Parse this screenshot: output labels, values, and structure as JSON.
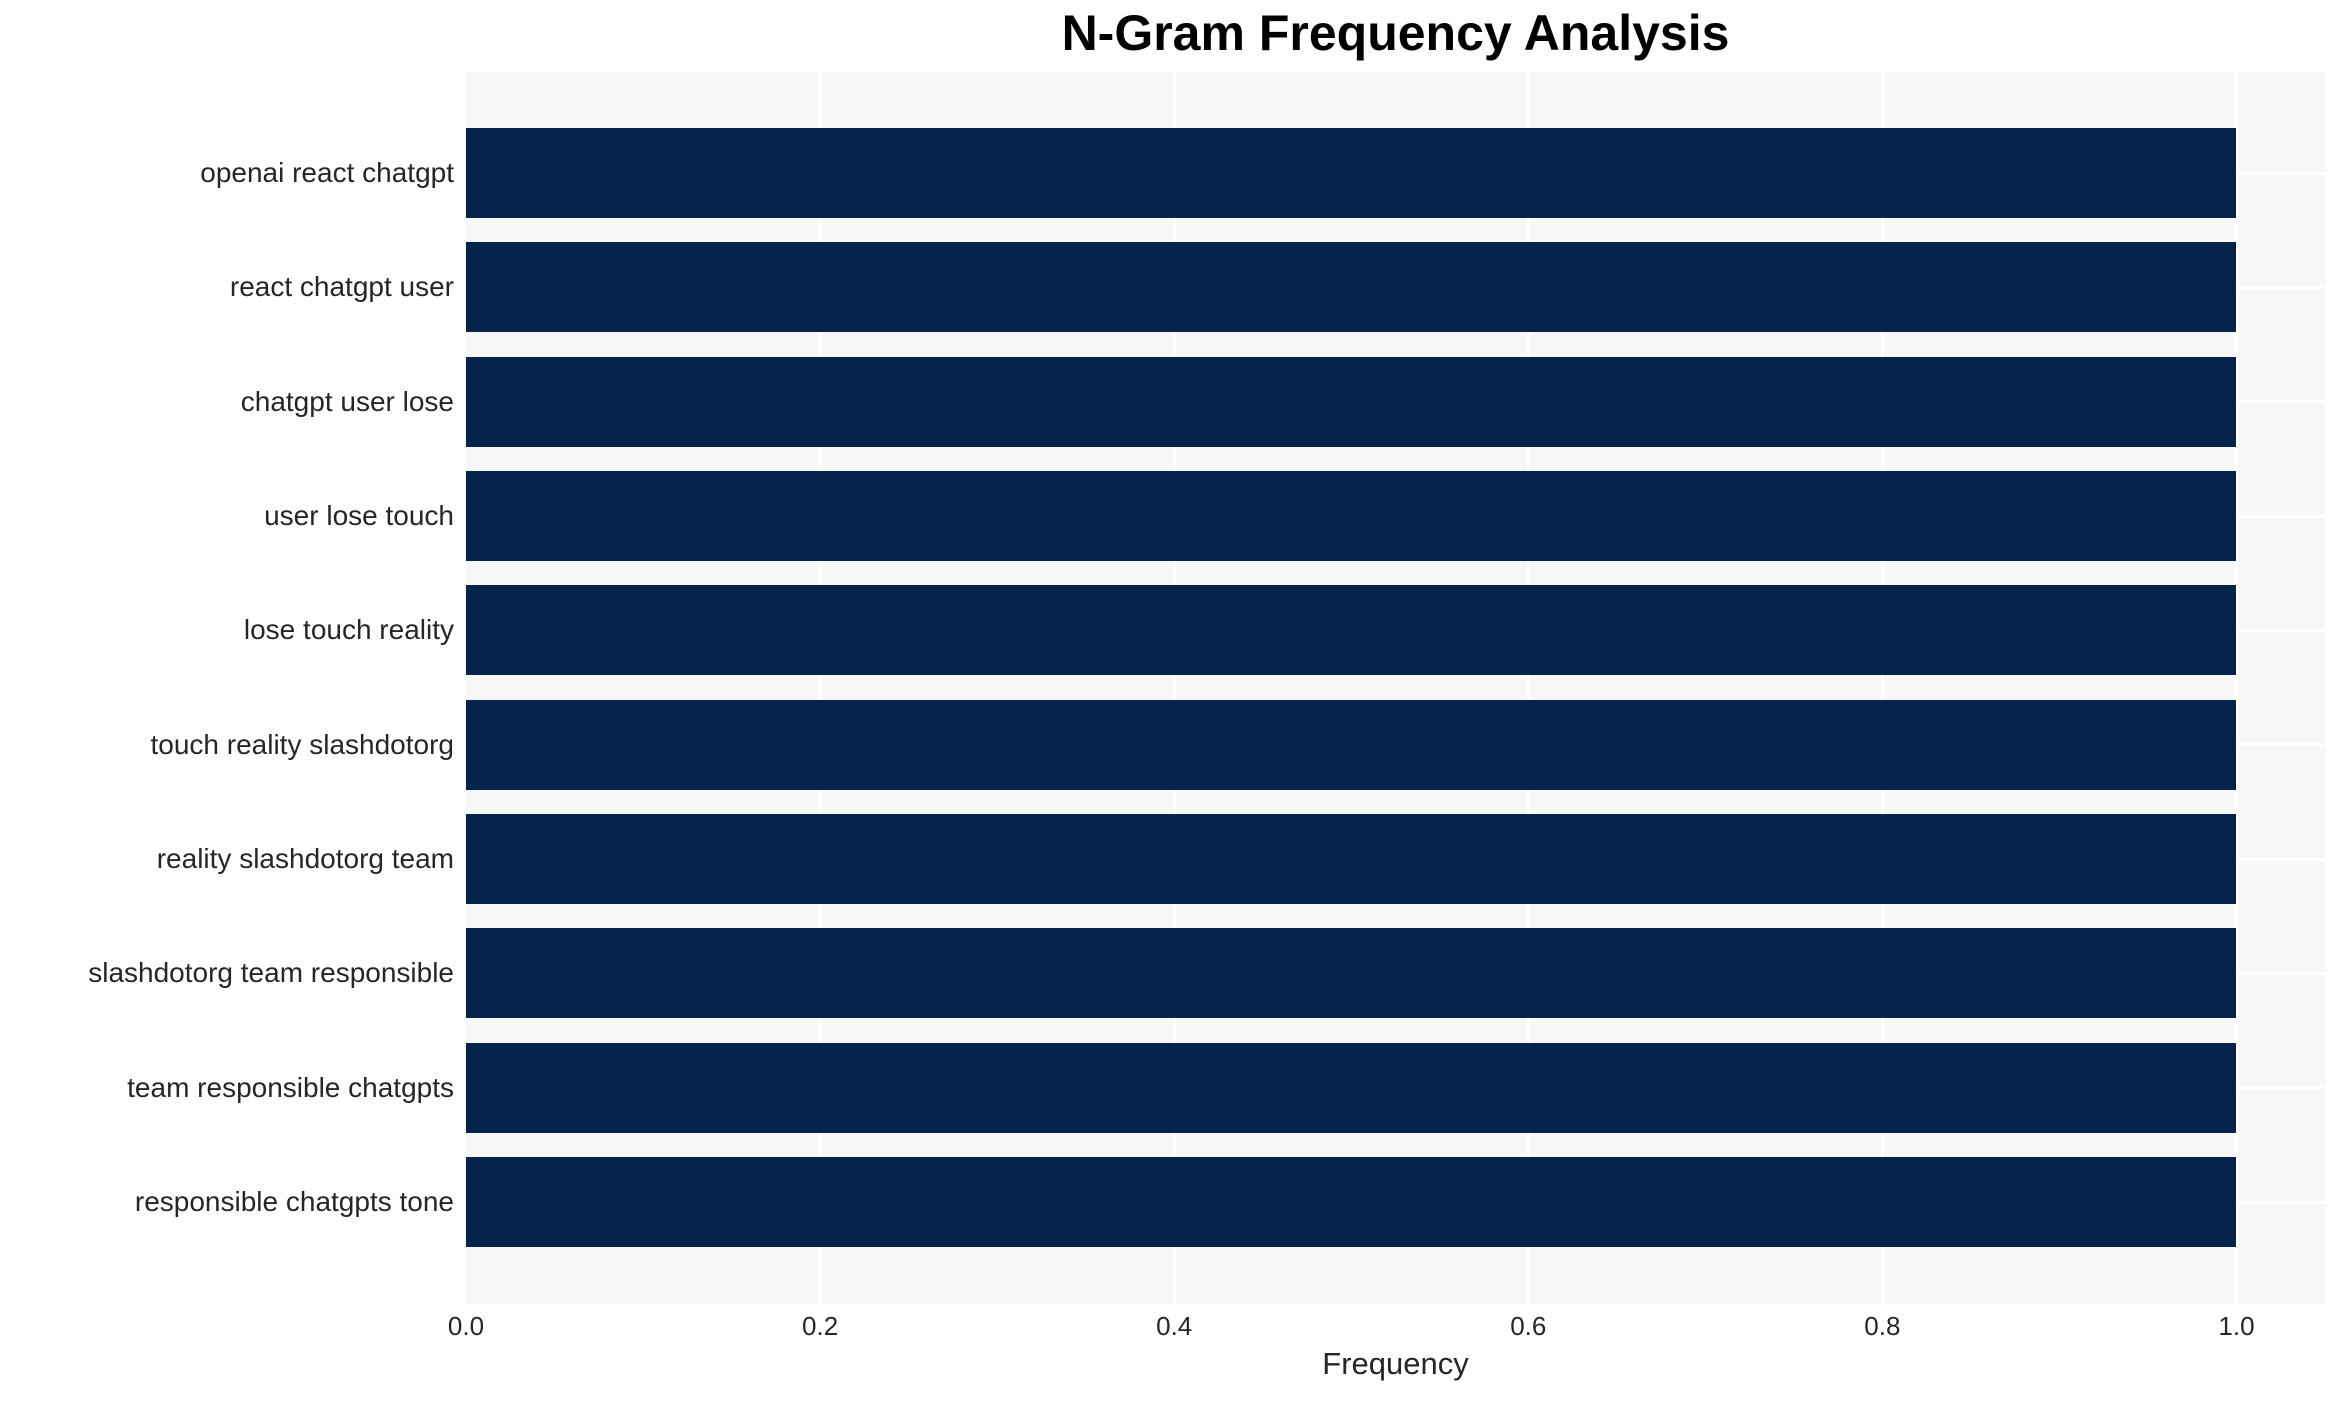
{
  "chart_data": {
    "type": "bar",
    "orientation": "horizontal",
    "title": "N-Gram Frequency Analysis",
    "xlabel": "Frequency",
    "ylabel": "",
    "categories": [
      "openai react chatgpt",
      "react chatgpt user",
      "chatgpt user lose",
      "user lose touch",
      "lose touch reality",
      "touch reality slashdotorg",
      "reality slashdotorg team",
      "slashdotorg team responsible",
      "team responsible chatgpts",
      "responsible chatgpts tone"
    ],
    "values": [
      1.0,
      1.0,
      1.0,
      1.0,
      1.0,
      1.0,
      1.0,
      1.0,
      1.0,
      1.0
    ],
    "xticks": [
      0.0,
      0.2,
      0.4,
      0.6,
      0.8,
      1.0
    ],
    "xtick_labels": [
      "0.0",
      "0.2",
      "0.4",
      "0.6",
      "0.8",
      "1.0"
    ],
    "xlim": [
      0,
      1.05
    ],
    "grid": "white gridlines on light-gray plot background, vertical at x ticks and horizontal at category centers",
    "legend": "none",
    "colors": {
      "bar": "#05234b",
      "plot_background": "#f7f7f7",
      "figure_background": "#ffffff",
      "gridline": "#ffffff",
      "title_text": "#000000",
      "tick_text": "#262626"
    }
  }
}
